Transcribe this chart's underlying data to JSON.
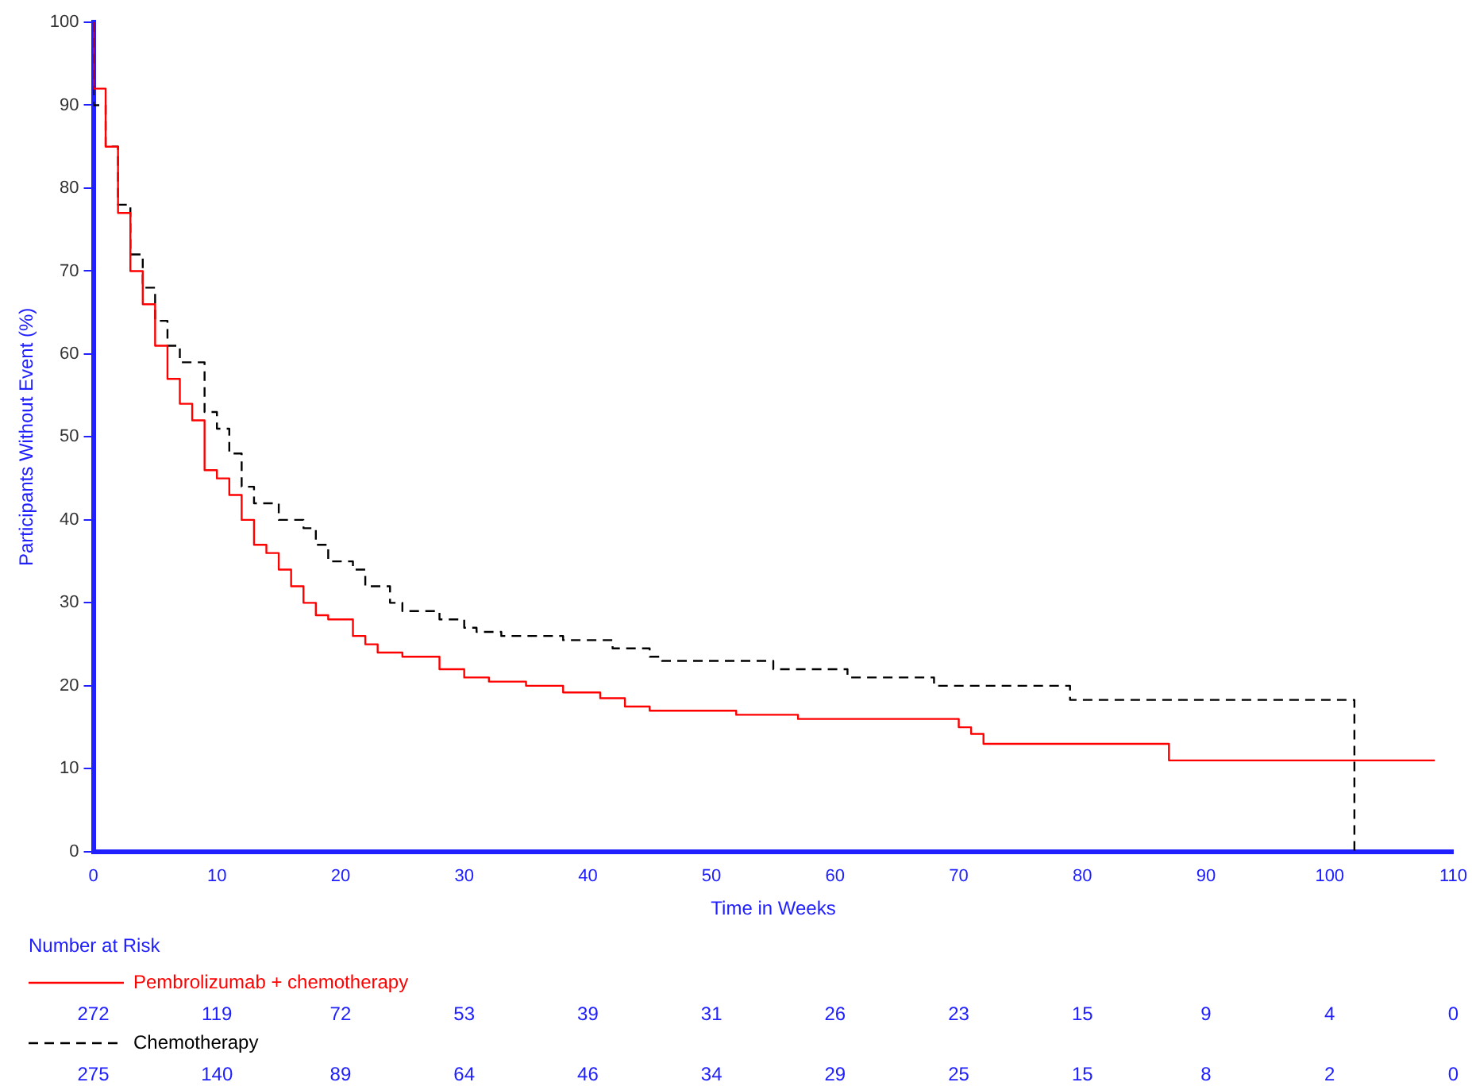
{
  "chart_data": {
    "type": "step",
    "xlabel": "Time in Weeks",
    "ylabel": "Participants Without Event (%)",
    "xlim": [
      0,
      110
    ],
    "xticks": [
      0,
      10,
      20,
      30,
      40,
      50,
      60,
      70,
      80,
      90,
      100,
      110
    ],
    "ylim": [
      0,
      100
    ],
    "yticks": [
      0,
      10,
      20,
      30,
      40,
      50,
      60,
      70,
      80,
      90,
      100
    ],
    "grid": false,
    "legend": "bottom",
    "marker": "none",
    "series": [
      {
        "name": "Pembrolizumab + chemotherapy",
        "color": "#ff0000",
        "line_style": "solid",
        "x": [
          0,
          1,
          2,
          3,
          4,
          5,
          6,
          7,
          8,
          9,
          10,
          11,
          12,
          13,
          14,
          15,
          16,
          17,
          18,
          19,
          21,
          22,
          23,
          25,
          28,
          30,
          32,
          35,
          38,
          41,
          43,
          45,
          52,
          57,
          70,
          71,
          72,
          87,
          92.5,
          108.5
        ],
        "values": [
          100,
          92,
          85,
          77,
          70,
          66,
          61,
          57,
          54,
          52,
          46,
          45,
          43,
          40,
          37,
          36,
          34,
          32,
          30,
          28.5,
          28,
          26,
          25,
          24,
          23.5,
          22,
          21,
          20.5,
          20,
          19.2,
          18.5,
          17.5,
          17,
          16.5,
          16,
          15,
          14.2,
          13,
          11,
          11
        ]
      },
      {
        "name": "Chemotherapy",
        "color": "#000000",
        "line_style": "dashed",
        "x": [
          0,
          1,
          2,
          3,
          4,
          5,
          6,
          7,
          9,
          10,
          11,
          12,
          13,
          15,
          17,
          18,
          19,
          21,
          22,
          24,
          25,
          28,
          30,
          31,
          33,
          38,
          42,
          45,
          46,
          55,
          61,
          68,
          79,
          82,
          102,
          102
        ],
        "values": [
          100,
          90,
          85,
          78,
          72,
          68,
          64,
          61,
          59,
          53,
          51,
          48,
          44,
          42,
          40,
          39,
          37,
          35,
          34,
          32,
          30,
          29,
          28,
          27,
          26.5,
          26,
          25.5,
          24.5,
          23.5,
          23,
          22,
          21,
          20,
          18.3,
          18.3,
          0
        ]
      }
    ],
    "annotations": [
      "Number at Risk",
      "272",
      "119",
      "72",
      "53",
      "39",
      "31",
      "26",
      "23",
      "15",
      "9",
      "4",
      "0",
      "275",
      "140",
      "89",
      "64",
      "46",
      "34",
      "29",
      "25",
      "15",
      "8",
      "2",
      "0"
    ]
  }
}
